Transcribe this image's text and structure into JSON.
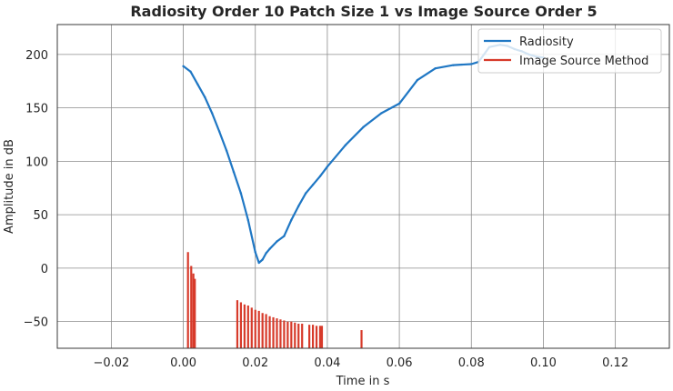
{
  "chart_data": {
    "type": "line",
    "title": "Radiosity Order 10 Patch Size 1 vs Image Source Order 5",
    "xlabel": "Time in s",
    "ylabel": "Amplitude in dB",
    "xlim": [
      -0.035,
      0.135
    ],
    "ylim": [
      -75,
      228
    ],
    "xticks": [
      -0.02,
      0.0,
      0.02,
      0.04,
      0.06,
      0.08,
      0.1,
      0.12
    ],
    "xtick_labels": [
      "−0.02",
      "0.00",
      "0.02",
      "0.04",
      "0.06",
      "0.08",
      "0.10",
      "0.12"
    ],
    "yticks": [
      -50,
      0,
      50,
      100,
      150,
      200
    ],
    "ytick_labels": [
      "−50",
      "0",
      "50",
      "100",
      "150",
      "200"
    ],
    "grid": true,
    "legend_position": "top-right",
    "series": [
      {
        "name": "Radiosity",
        "color": "#1f77c4",
        "style": "line",
        "x": [
          0.0,
          0.002,
          0.004,
          0.006,
          0.008,
          0.01,
          0.012,
          0.014,
          0.016,
          0.018,
          0.02,
          0.021,
          0.022,
          0.023,
          0.024,
          0.026,
          0.028,
          0.03,
          0.032,
          0.034,
          0.036,
          0.038,
          0.04,
          0.045,
          0.05,
          0.055,
          0.06,
          0.065,
          0.07,
          0.075,
          0.08,
          0.082,
          0.085,
          0.088,
          0.09,
          0.092,
          0.094,
          0.096,
          0.098,
          0.1
        ],
        "y": [
          189,
          184,
          172,
          160,
          145,
          128,
          110,
          90,
          70,
          45,
          15,
          5,
          8,
          14,
          18,
          25,
          30,
          45,
          58,
          70,
          78,
          86,
          95,
          115,
          132,
          145,
          154,
          176,
          187,
          190,
          191,
          193,
          207,
          209,
          208,
          205,
          203,
          200,
          198,
          197
        ]
      },
      {
        "name": "Image Source Method",
        "color": "#d73a2a",
        "style": "spikes",
        "baseline": -75,
        "x": [
          0.0013,
          0.0022,
          0.0028,
          0.0032,
          0.015,
          0.016,
          0.017,
          0.018,
          0.019,
          0.02,
          0.021,
          0.022,
          0.023,
          0.024,
          0.025,
          0.026,
          0.027,
          0.028,
          0.029,
          0.03,
          0.031,
          0.032,
          0.033,
          0.035,
          0.036,
          0.037,
          0.038,
          0.0385,
          0.0495
        ],
        "y": [
          15,
          2,
          -5,
          -10,
          -30,
          -32,
          -34,
          -35,
          -37,
          -39,
          -40,
          -42,
          -43,
          -45,
          -46,
          -47,
          -48,
          -49,
          -50,
          -50,
          -51,
          -52,
          -52,
          -53,
          -53,
          -54,
          -54,
          -54,
          -58
        ]
      }
    ]
  }
}
